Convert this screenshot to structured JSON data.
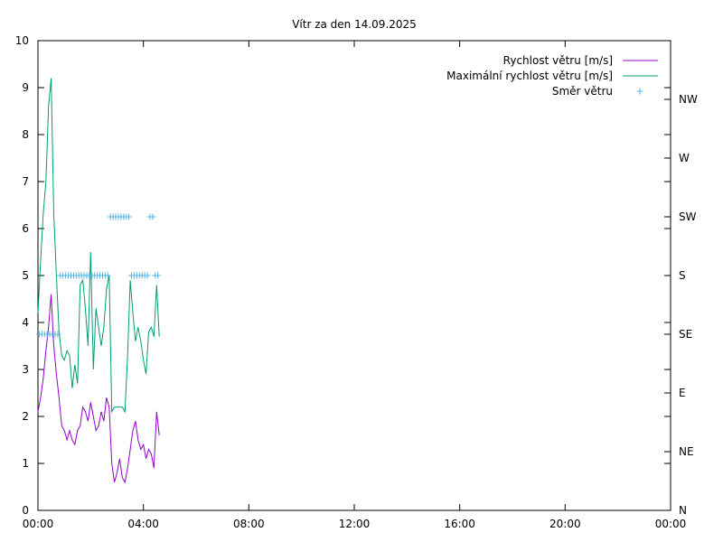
{
  "colors": {
    "speed": "#9400d3",
    "gust": "#009e73",
    "direction": "#56b4e9",
    "axis": "#000000"
  },
  "chart_data": {
    "type": "line",
    "title": "Vítr za den 14.09.2025",
    "xlabel": "",
    "ylabel": "",
    "xlim_hours": [
      0,
      24
    ],
    "ylim": [
      0,
      10
    ],
    "x_ticks": [
      "00:00",
      "04:00",
      "08:00",
      "12:00",
      "16:00",
      "20:00",
      "00:00"
    ],
    "y_ticks": [
      "0",
      "1",
      "2",
      "3",
      "4",
      "5",
      "6",
      "7",
      "8",
      "9",
      "10"
    ],
    "y2_ticks": [
      "N",
      "NE",
      "E",
      "SE",
      "S",
      "SW",
      "W",
      "NW"
    ],
    "grid": false,
    "legend_position": "top-right",
    "legend": [
      "Rychlost větru [m/s]",
      "Maximální rychlost větru [m/s]",
      "Směr větru"
    ],
    "series": [
      {
        "name": "Rychlost větru [m/s]",
        "type": "line",
        "x_hours": [
          0.0,
          0.1,
          0.2,
          0.3,
          0.4,
          0.5,
          0.6,
          0.7,
          0.8,
          0.9,
          1.0,
          1.1,
          1.2,
          1.3,
          1.4,
          1.5,
          1.6,
          1.7,
          1.8,
          1.9,
          2.0,
          2.1,
          2.2,
          2.3,
          2.4,
          2.5,
          2.6,
          2.7,
          2.8,
          2.9,
          3.0,
          3.1,
          3.2,
          3.3,
          3.4,
          3.5,
          3.6,
          3.7,
          3.8,
          3.9,
          4.0,
          4.1,
          4.2,
          4.3,
          4.4,
          4.5,
          4.6
        ],
        "values": [
          2.1,
          2.4,
          2.8,
          3.4,
          3.9,
          4.6,
          3.5,
          2.9,
          2.4,
          1.8,
          1.7,
          1.5,
          1.7,
          1.5,
          1.4,
          1.7,
          1.8,
          2.2,
          2.1,
          1.9,
          2.3,
          2.0,
          1.7,
          1.8,
          2.1,
          1.9,
          2.4,
          2.2,
          1.0,
          0.6,
          0.8,
          1.1,
          0.7,
          0.6,
          0.9,
          1.3,
          1.7,
          1.9,
          1.5,
          1.3,
          1.4,
          1.1,
          1.3,
          1.2,
          0.9,
          2.1,
          1.6
        ]
      },
      {
        "name": "Maximální rychlost větru [m/s]",
        "type": "line",
        "x_hours": [
          0.0,
          0.1,
          0.2,
          0.3,
          0.4,
          0.5,
          0.6,
          0.7,
          0.8,
          0.9,
          1.0,
          1.1,
          1.2,
          1.3,
          1.4,
          1.5,
          1.6,
          1.7,
          1.8,
          1.9,
          2.0,
          2.1,
          2.2,
          2.3,
          2.4,
          2.5,
          2.6,
          2.7,
          2.8,
          2.9,
          3.0,
          3.1,
          3.2,
          3.3,
          3.4,
          3.5,
          3.6,
          3.7,
          3.8,
          3.9,
          4.0,
          4.1,
          4.2,
          4.3,
          4.4,
          4.5,
          4.6
        ],
        "values": [
          4.2,
          5.3,
          6.3,
          7.0,
          8.6,
          9.2,
          6.3,
          5.0,
          3.8,
          3.3,
          3.2,
          3.4,
          3.3,
          2.6,
          3.1,
          2.7,
          4.8,
          4.9,
          4.3,
          3.5,
          5.5,
          3.0,
          4.3,
          3.9,
          3.5,
          3.9,
          4.7,
          5.0,
          2.1,
          2.2,
          2.2,
          2.2,
          2.2,
          2.1,
          3.3,
          4.9,
          4.2,
          3.6,
          3.9,
          3.6,
          3.2,
          2.9,
          3.8,
          3.9,
          3.7,
          4.8,
          3.7
        ]
      },
      {
        "name": "Směr větru",
        "type": "scatter",
        "y_labels": [
          "N",
          "NE",
          "E",
          "SE",
          "S",
          "SW",
          "W",
          "NW"
        ],
        "x_hours": [
          0.05,
          0.15,
          0.25,
          0.35,
          0.45,
          0.55,
          0.65,
          0.75,
          0.85,
          0.95,
          1.05,
          1.15,
          1.25,
          1.35,
          1.45,
          1.55,
          1.65,
          1.75,
          1.85,
          1.95,
          2.05,
          2.15,
          2.25,
          2.35,
          2.45,
          2.55,
          2.65,
          2.75,
          2.85,
          2.95,
          3.05,
          3.15,
          3.25,
          3.35,
          3.45,
          3.55,
          3.65,
          3.75,
          3.85,
          3.95,
          4.05,
          4.15,
          4.25,
          4.35,
          4.45,
          4.55
        ],
        "values": [
          "SE",
          "SE",
          "SE",
          "SE",
          "SE",
          "SE",
          "SE",
          "SE",
          "S",
          "S",
          "S",
          "S",
          "S",
          "S",
          "S",
          "S",
          "S",
          "S",
          "S",
          "S",
          "S",
          "S",
          "S",
          "S",
          "S",
          "S",
          "S",
          "SW",
          "SW",
          "SW",
          "SW",
          "SW",
          "SW",
          "SW",
          "SW",
          "S",
          "S",
          "S",
          "S",
          "S",
          "S",
          "S",
          "SW",
          "SW",
          "S",
          "S"
        ]
      }
    ]
  }
}
